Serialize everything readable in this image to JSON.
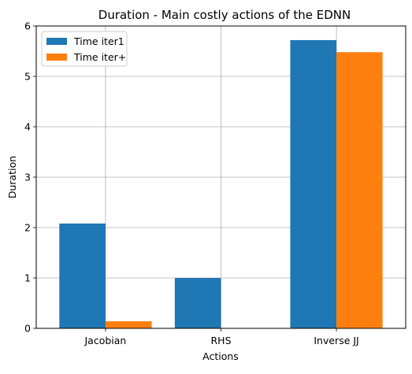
{
  "chart_data": {
    "type": "bar",
    "title": "Duration - Main costly actions of the EDNN",
    "xlabel": "Actions",
    "ylabel": "Duration",
    "categories": [
      "Jacobian",
      "RHS",
      "Inverse JJ"
    ],
    "series": [
      {
        "name": "Time iter1",
        "values": [
          2.08,
          1.0,
          5.72
        ],
        "color": "#1f77b4"
      },
      {
        "name": "Time iter+",
        "values": [
          0.14,
          0.0,
          5.48
        ],
        "color": "#ff7f0e"
      }
    ],
    "ylim": [
      0,
      6
    ],
    "yticks": [
      "0",
      "1",
      "2",
      "3",
      "4",
      "5",
      "6"
    ],
    "grid": true,
    "legend_position": "top-left"
  }
}
